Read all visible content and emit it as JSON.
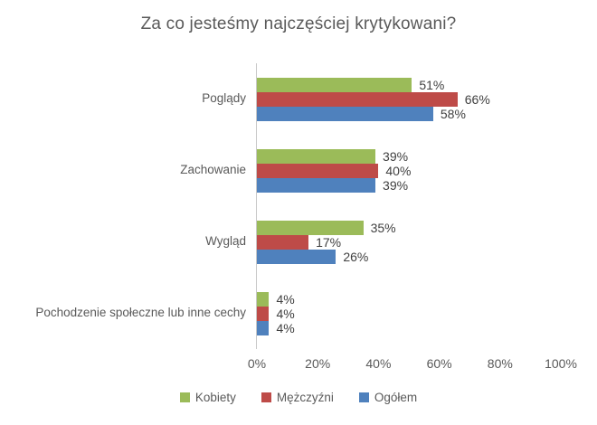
{
  "title": "Za co jesteśmy najczęściej krytykowani?",
  "colors": {
    "kobiety": "#9BBB59",
    "mezczyzni": "#BE4B48",
    "ogolem": "#4F81BD",
    "axis_line": "#C8C8C8",
    "title_text": "#595959",
    "value_text": "#404040"
  },
  "chart_data": {
    "type": "bar",
    "orientation": "horizontal",
    "title": "Za co jesteśmy najczęściej krytykowani?",
    "categories": [
      "Poglądy",
      "Zachowanie",
      "Wygląd",
      "Pochodzenie społeczne lub inne cechy"
    ],
    "series": [
      {
        "name": "Kobiety",
        "color": "#9BBB59",
        "values": [
          51,
          39,
          35,
          4
        ]
      },
      {
        "name": "Mężczyźni",
        "color": "#BE4B48",
        "values": [
          66,
          40,
          17,
          4
        ]
      },
      {
        "name": "Ogółem",
        "color": "#4F81BD",
        "values": [
          58,
          39,
          26,
          4
        ]
      }
    ],
    "value_label_suffix": "%",
    "xlabel": "",
    "ylabel": "",
    "xlim": [
      0,
      100
    ],
    "x_ticks": [
      {
        "label": "0%",
        "value": 0
      },
      {
        "label": "20%",
        "value": 20
      },
      {
        "label": "40%",
        "value": 40
      },
      {
        "label": "60%",
        "value": 60
      },
      {
        "label": "80%",
        "value": 80
      },
      {
        "label": "100%",
        "value": 100
      }
    ],
    "grid": false,
    "legend_position": "bottom"
  }
}
